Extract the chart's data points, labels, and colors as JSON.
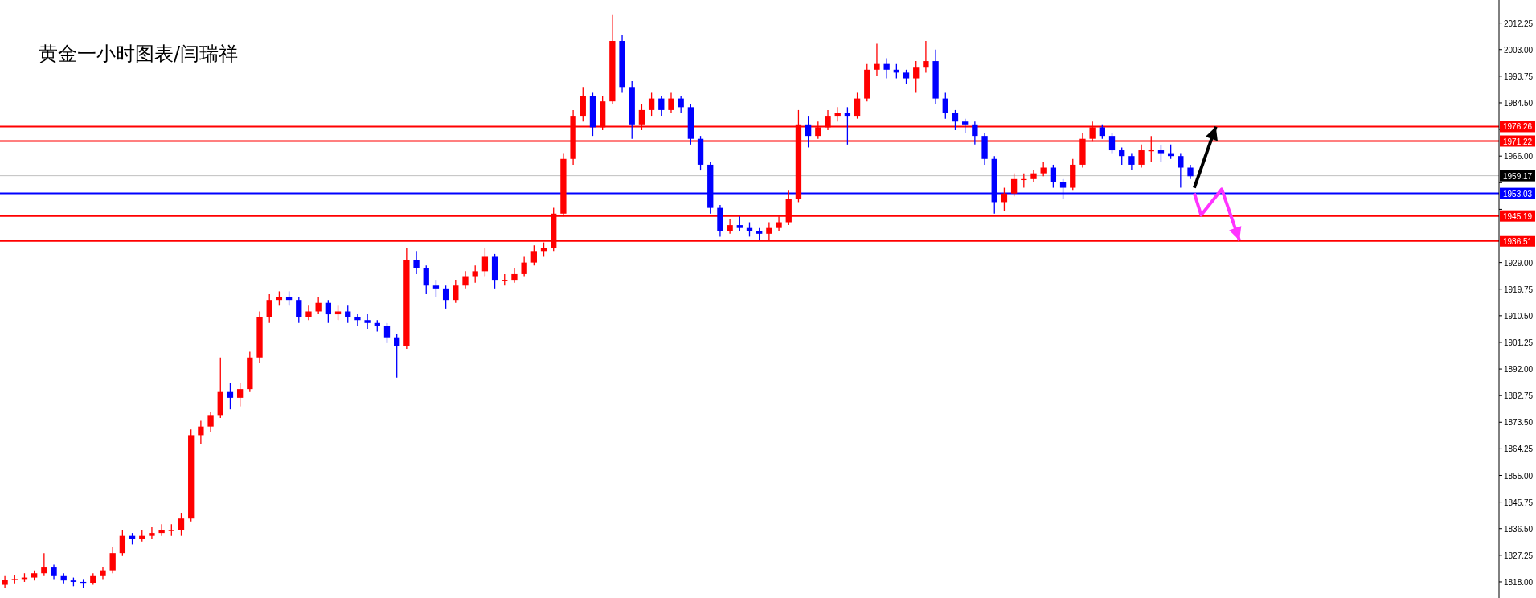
{
  "chart_data": {
    "type": "candlestick",
    "title": "黄金一小时图表/闫瑞祥",
    "categories": [
      null,
      null,
      null,
      null,
      null,
      null,
      null,
      null,
      null,
      null,
      null,
      null,
      null,
      null,
      null,
      null,
      null,
      null,
      null,
      null,
      null,
      null,
      null,
      null,
      null,
      null,
      null,
      null,
      null,
      null,
      null,
      null,
      null,
      null,
      null,
      null,
      null,
      null,
      null,
      null,
      null,
      null,
      null,
      null,
      null,
      null,
      null,
      null,
      null,
      null,
      null,
      null,
      null,
      null,
      null,
      null,
      null,
      null,
      null,
      null,
      null,
      null,
      null,
      null,
      null,
      null,
      null,
      null,
      null,
      null,
      null,
      null,
      null,
      null,
      null,
      null,
      null,
      null,
      null,
      null,
      null,
      null,
      null,
      null,
      null,
      null,
      null,
      null,
      null,
      null,
      null,
      null,
      null,
      null,
      null,
      null,
      null,
      null,
      null,
      null,
      null,
      null,
      null,
      null,
      null,
      null,
      null,
      null,
      null,
      null,
      null,
      null,
      null,
      null,
      null,
      null,
      null,
      null,
      null,
      null,
      null,
      null,
      null,
      null,
      null,
      null,
      null,
      null,
      null,
      null,
      null,
      null,
      null,
      null,
      null,
      null,
      null,
      null,
      null,
      null,
      null,
      null,
      null,
      null,
      null,
      null,
      null,
      null,
      null,
      null,
      null,
      null,
      null
    ],
    "ohlc": [
      [
        1817,
        1820,
        1816,
        1818.6
      ],
      [
        1818.6,
        1820.5,
        1817.5,
        1819
      ],
      [
        1819,
        1821,
        1818,
        1819.5
      ],
      [
        1819.5,
        1822,
        1818.5,
        1821
      ],
      [
        1821,
        1828,
        1820,
        1823
      ],
      [
        1823,
        1824,
        1819,
        1820
      ],
      [
        1820,
        1821,
        1817.5,
        1818.5
      ],
      [
        1818.5,
        1819.5,
        1816.5,
        1818
      ],
      [
        1818,
        1819,
        1816,
        1817.7
      ],
      [
        1817.7,
        1821,
        1817,
        1820
      ],
      [
        1820,
        1823,
        1819,
        1822
      ],
      [
        1822,
        1830,
        1821,
        1828
      ],
      [
        1828,
        1836,
        1827,
        1834
      ],
      [
        1834,
        1835,
        1831,
        1833
      ],
      [
        1833,
        1836,
        1832,
        1834
      ],
      [
        1834,
        1837,
        1833,
        1835
      ],
      [
        1835,
        1838,
        1834,
        1836
      ],
      [
        1836,
        1838,
        1834,
        1836
      ],
      [
        1836,
        1842,
        1834,
        1840
      ],
      [
        1840,
        1871,
        1839,
        1869
      ],
      [
        1869,
        1874,
        1866,
        1872
      ],
      [
        1872,
        1877,
        1870,
        1876
      ],
      [
        1876,
        1896,
        1875,
        1884
      ],
      [
        1884,
        1887,
        1878,
        1882
      ],
      [
        1882,
        1887,
        1879,
        1885
      ],
      [
        1885,
        1898,
        1884,
        1896
      ],
      [
        1896,
        1912,
        1894,
        1910
      ],
      [
        1910,
        1918,
        1908,
        1916
      ],
      [
        1916,
        1919,
        1914,
        1917
      ],
      [
        1917,
        1919,
        1914,
        1916
      ],
      [
        1916,
        1917,
        1908,
        1910
      ],
      [
        1910,
        1914,
        1909,
        1912
      ],
      [
        1912,
        1917,
        1911,
        1915
      ],
      [
        1915,
        1916,
        1908,
        1911
      ],
      [
        1911,
        1914,
        1909,
        1912
      ],
      [
        1912,
        1914,
        1908,
        1910
      ],
      [
        1910,
        1911,
        1907,
        1909
      ],
      [
        1909,
        1911,
        1906,
        1908
      ],
      [
        1908,
        1909,
        1905,
        1907
      ],
      [
        1907,
        1908,
        1901,
        1903
      ],
      [
        1903,
        1904,
        1889,
        1900
      ],
      [
        1900,
        1934,
        1899,
        1930
      ],
      [
        1930,
        1933,
        1925,
        1927
      ],
      [
        1927,
        1928,
        1918,
        1921
      ],
      [
        1921,
        1923,
        1917,
        1920
      ],
      [
        1920,
        1921,
        1913,
        1916
      ],
      [
        1916,
        1923,
        1915,
        1921
      ],
      [
        1921,
        1926,
        1920,
        1924
      ],
      [
        1924,
        1928,
        1922,
        1926
      ],
      [
        1926,
        1934,
        1924,
        1931
      ],
      [
        1931,
        1932,
        1920,
        1923
      ],
      [
        1923,
        1925,
        1921,
        1923
      ],
      [
        1923,
        1927,
        1922,
        1925
      ],
      [
        1925,
        1931,
        1924,
        1929
      ],
      [
        1929,
        1935,
        1928,
        1933
      ],
      [
        1933,
        1936,
        1931,
        1934
      ],
      [
        1934,
        1948,
        1933,
        1946
      ],
      [
        1946,
        1967,
        1945,
        1965
      ],
      [
        1965,
        1982,
        1963,
        1980
      ],
      [
        1980,
        1990,
        1978,
        1987
      ],
      [
        1987,
        1988,
        1973,
        1976
      ],
      [
        1976,
        1987,
        1975,
        1985
      ],
      [
        1985,
        2015,
        1984,
        2006
      ],
      [
        2006,
        2008,
        1988,
        1990
      ],
      [
        1990,
        1992,
        1972,
        1977
      ],
      [
        1977,
        1984,
        1975,
        1982
      ],
      [
        1982,
        1988,
        1980,
        1986
      ],
      [
        1986,
        1987,
        1980,
        1982
      ],
      [
        1982,
        1988,
        1981,
        1986
      ],
      [
        1986,
        1987,
        1981,
        1983
      ],
      [
        1983,
        1984,
        1970,
        1972
      ],
      [
        1972,
        1973,
        1961,
        1963
      ],
      [
        1963,
        1964,
        1946,
        1948
      ],
      [
        1948,
        1949,
        1938,
        1940
      ],
      [
        1940,
        1944,
        1939,
        1942
      ],
      [
        1942,
        1945,
        1940,
        1941
      ],
      [
        1941,
        1943,
        1938,
        1940
      ],
      [
        1940,
        1941,
        1937,
        1939
      ],
      [
        1939,
        1943,
        1937,
        1941
      ],
      [
        1941,
        1945,
        1940,
        1943
      ],
      [
        1943,
        1954,
        1942,
        1951
      ],
      [
        1951,
        1982,
        1950,
        1977
      ],
      [
        1977,
        1980,
        1969,
        1973
      ],
      [
        1973,
        1978,
        1972,
        1976
      ],
      [
        1976,
        1982,
        1975,
        1980
      ],
      [
        1980,
        1983,
        1978,
        1981
      ],
      [
        1981,
        1983,
        1970,
        1980
      ],
      [
        1980,
        1988,
        1979,
        1986
      ],
      [
        1986,
        1998,
        1985,
        1996
      ],
      [
        1996,
        2005,
        1994,
        1998
      ],
      [
        1998,
        2000,
        1993,
        1996
      ],
      [
        1996,
        1998,
        1993,
        1995
      ],
      [
        1995,
        1996,
        1991,
        1993
      ],
      [
        1993,
        1999,
        1988,
        1997
      ],
      [
        1997,
        2006,
        1995,
        1999
      ],
      [
        1999,
        2003,
        1984,
        1986
      ],
      [
        1986,
        1988,
        1979,
        1981
      ],
      [
        1981,
        1982,
        1975,
        1978
      ],
      [
        1978,
        1979,
        1974,
        1977
      ],
      [
        1977,
        1978,
        1970,
        1973
      ],
      [
        1973,
        1974,
        1963,
        1965
      ],
      [
        1965,
        1966,
        1946,
        1950
      ],
      [
        1950,
        1955,
        1947,
        1953
      ],
      [
        1953,
        1960,
        1952,
        1958
      ],
      [
        1958,
        1960,
        1955,
        1958
      ],
      [
        1958,
        1961,
        1957,
        1960
      ],
      [
        1960,
        1964,
        1959,
        1962
      ],
      [
        1962,
        1963,
        1955,
        1957
      ],
      [
        1957,
        1958,
        1951,
        1955
      ],
      [
        1955,
        1965,
        1954,
        1963
      ],
      [
        1963,
        1974,
        1962,
        1972
      ],
      [
        1972,
        1978,
        1971,
        1976
      ],
      [
        1976,
        1977,
        1972,
        1973
      ],
      [
        1973,
        1974,
        1967,
        1968
      ],
      [
        1968,
        1969,
        1963,
        1966
      ],
      [
        1966,
        1967,
        1961,
        1963
      ],
      [
        1963,
        1970,
        1962,
        1968
      ],
      [
        1968,
        1973,
        1964,
        1968
      ],
      [
        1968,
        1970,
        1964,
        1967
      ],
      [
        1967,
        1970,
        1965,
        1966
      ],
      [
        1966,
        1967,
        1955,
        1962
      ],
      [
        1962,
        1963,
        1958,
        1959
      ],
      null,
      null,
      null,
      null,
      null,
      null,
      null,
      null,
      null,
      null,
      null,
      null,
      null,
      null,
      null,
      null,
      null,
      null,
      null,
      null,
      null,
      null,
      null,
      null,
      null,
      null,
      null,
      null,
      null,
      null,
      null
    ],
    "colors": [
      "#ff0000",
      "#ff0000",
      "#ff0000",
      "#ff0000",
      "#ff0000",
      "#0000ff",
      "#0000ff",
      "#0000ff",
      "#0000ff",
      "#ff0000",
      "#ff0000",
      "#ff0000",
      "#ff0000",
      "#0000ff",
      "#ff0000",
      "#ff0000",
      "#ff0000",
      "#ff0000",
      "#ff0000",
      "#ff0000",
      "#ff0000",
      "#ff0000",
      "#ff0000",
      "#0000ff",
      "#ff0000",
      "#ff0000",
      "#ff0000",
      "#ff0000",
      "#ff0000",
      "#0000ff",
      "#0000ff",
      "#ff0000",
      "#ff0000",
      "#0000ff",
      "#ff0000",
      "#0000ff",
      "#0000ff",
      "#0000ff",
      "#0000ff",
      "#0000ff",
      "#0000ff",
      "#ff0000",
      "#0000ff",
      "#0000ff",
      "#0000ff",
      "#0000ff",
      "#ff0000",
      "#ff0000",
      "#ff0000",
      "#ff0000",
      "#0000ff",
      "#ff0000",
      "#ff0000",
      "#ff0000",
      "#ff0000",
      "#ff0000",
      "#ff0000",
      "#ff0000",
      "#ff0000",
      "#ff0000",
      "#0000ff",
      "#ff0000",
      "#ff0000",
      "#0000ff",
      "#0000ff",
      "#ff0000",
      "#ff0000",
      "#0000ff",
      "#ff0000",
      "#0000ff",
      "#0000ff",
      "#0000ff",
      "#0000ff",
      "#0000ff",
      "#ff0000",
      "#0000ff",
      "#0000ff",
      "#0000ff",
      "#ff0000",
      "#ff0000",
      "#ff0000",
      "#ff0000",
      "#0000ff",
      "#ff0000",
      "#ff0000",
      "#ff0000",
      "#0000ff",
      "#ff0000",
      "#ff0000",
      "#ff0000",
      "#0000ff",
      "#0000ff",
      "#0000ff",
      "#ff0000",
      "#ff0000",
      "#0000ff",
      "#0000ff",
      "#0000ff",
      "#0000ff",
      "#0000ff",
      "#0000ff",
      "#0000ff",
      "#ff0000",
      "#ff0000",
      "#ff0000",
      "#ff0000",
      "#ff0000",
      "#0000ff",
      "#0000ff",
      "#ff0000",
      "#ff0000",
      "#ff0000",
      "#0000ff",
      "#0000ff",
      "#0000ff",
      "#0000ff",
      "#ff0000",
      "#ff0000",
      "#0000ff",
      "#0000ff",
      "#0000ff",
      "#0000ff",
      null,
      null,
      null,
      null,
      null,
      null,
      null,
      null,
      null,
      null,
      null,
      null,
      null,
      null,
      null,
      null,
      null,
      null,
      null,
      null,
      null,
      null,
      null,
      null,
      null,
      null,
      null,
      null,
      null,
      null,
      null
    ],
    "tick_labels": "y",
    "ylim": [
      1812.4,
      2020.25
    ],
    "yticks": [
      {
        "value": 2012.25,
        "label": "2012.25"
      },
      {
        "value": 2003,
        "label": "2003.00"
      },
      {
        "value": 1993.75,
        "label": "1993.75"
      },
      {
        "value": 1984.5,
        "label": "1984.50"
      },
      {
        "value": 1975.25,
        "label": null
      },
      {
        "value": 1966,
        "label": "1966.00"
      },
      {
        "value": 1956.75,
        "label": null
      },
      {
        "value": 1947.5,
        "label": null
      },
      {
        "value": 1938.25,
        "label": null
      },
      {
        "value": 1929,
        "label": "1929.00"
      },
      {
        "value": 1919.75,
        "label": "1919.75"
      },
      {
        "value": 1910.5,
        "label": "1910.50"
      },
      {
        "value": 1901.25,
        "label": "1901.25"
      },
      {
        "value": 1892,
        "label": "1892.00"
      },
      {
        "value": 1882.75,
        "label": "1882.75"
      },
      {
        "value": 1873.5,
        "label": "1873.50"
      },
      {
        "value": 1864.25,
        "label": "1864.25"
      },
      {
        "value": 1855,
        "label": "1855.00"
      },
      {
        "value": 1845.75,
        "label": "1845.75"
      },
      {
        "value": 1836.5,
        "label": "1836.50"
      },
      {
        "value": 1827.25,
        "label": "1827.25"
      },
      {
        "value": 1818,
        "label": "1818.00"
      }
    ],
    "ref_lines": [
      {
        "axis": "y",
        "value": 1976.26,
        "label": "1976.26",
        "color": "#ff0000"
      },
      {
        "axis": "y",
        "value": 1971.22,
        "label": "1971.22",
        "color": "#ff0000"
      },
      {
        "axis": "y",
        "value": 1959.17,
        "label": "1959.17",
        "color": "#c0c0c0"
      },
      {
        "axis": "y",
        "value": 1953.03,
        "label": "1953.03",
        "color": "#0000ff"
      },
      {
        "axis": "y",
        "value": 1945.19,
        "label": "1945.19",
        "color": "#ff0000"
      },
      {
        "axis": "y",
        "value": 1936.51,
        "label": "1936.51",
        "color": "#ff0000"
      }
    ]
  }
}
